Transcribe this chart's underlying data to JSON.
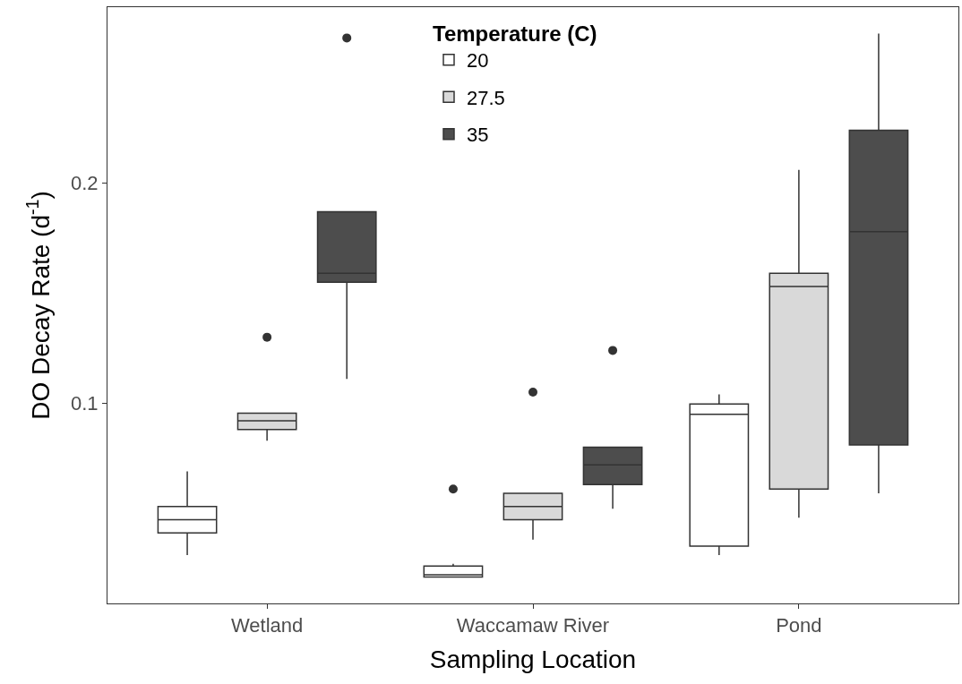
{
  "chart_data": {
    "type": "box",
    "xlabel": "Sampling Location",
    "ylabel": "DO Decay Rate (d$^{-1}$)",
    "legend_title": "Temperature (C)",
    "categories": [
      "Wetland",
      "Waccamaw River",
      "Pond"
    ],
    "ylim": [
      0.009,
      0.28
    ],
    "yticks": [
      0.1,
      0.2
    ],
    "legend": "top",
    "series": [
      {
        "name": "20",
        "color": "#ffffff",
        "boxes": [
          {
            "low": 0.031,
            "q1": 0.041,
            "median": 0.047,
            "q3": 0.053,
            "high": 0.069
          },
          {
            "low": 0.021,
            "q1": 0.021,
            "median": 0.022,
            "q3": 0.026,
            "high": 0.027,
            "outliers": [
              0.061
            ]
          },
          {
            "low": 0.031,
            "q1": 0.035,
            "median": 0.095,
            "q3": 0.0996,
            "high": 0.104
          }
        ]
      },
      {
        "name": "27.5",
        "color": "#d9d9d9",
        "boxes": [
          {
            "low": 0.083,
            "q1": 0.088,
            "median": 0.092,
            "q3": 0.0955,
            "high": 0.0955,
            "outliers": [
              0.13
            ]
          },
          {
            "low": 0.038,
            "q1": 0.047,
            "median": 0.053,
            "q3": 0.059,
            "high": 0.059,
            "outliers": [
              0.105
            ]
          },
          {
            "low": 0.048,
            "q1": 0.061,
            "median": 0.153,
            "q3": 0.159,
            "high": 0.206
          }
        ]
      },
      {
        "name": "35",
        "color": "#4d4d4d",
        "boxes": [
          {
            "low": 0.111,
            "q1": 0.155,
            "median": 0.159,
            "q3": 0.187,
            "high": 0.187,
            "outliers": [
              0.266
            ]
          },
          {
            "low": 0.052,
            "q1": 0.063,
            "median": 0.072,
            "q3": 0.08,
            "high": 0.08,
            "outliers": [
              0.124
            ]
          },
          {
            "low": 0.059,
            "q1": 0.081,
            "median": 0.178,
            "q3": 0.224,
            "high": 0.268
          }
        ]
      }
    ]
  }
}
